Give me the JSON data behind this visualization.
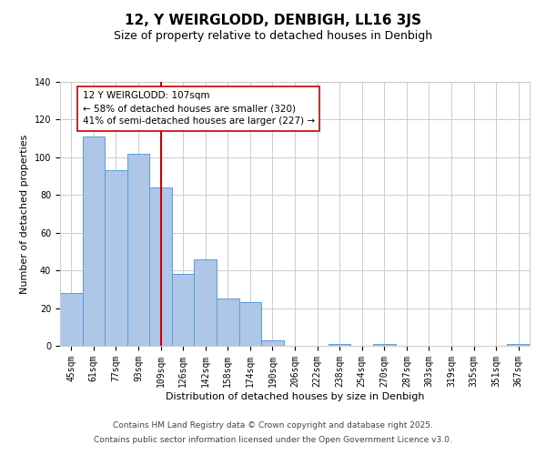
{
  "title": "12, Y WEIRGLODD, DENBIGH, LL16 3JS",
  "subtitle": "Size of property relative to detached houses in Denbigh",
  "xlabel": "Distribution of detached houses by size in Denbigh",
  "ylabel": "Number of detached properties",
  "bar_labels": [
    "45sqm",
    "61sqm",
    "77sqm",
    "93sqm",
    "109sqm",
    "126sqm",
    "142sqm",
    "158sqm",
    "174sqm",
    "190sqm",
    "206sqm",
    "222sqm",
    "238sqm",
    "254sqm",
    "270sqm",
    "287sqm",
    "303sqm",
    "319sqm",
    "335sqm",
    "351sqm",
    "367sqm"
  ],
  "bar_values": [
    28,
    111,
    93,
    102,
    84,
    38,
    46,
    25,
    23,
    3,
    0,
    0,
    1,
    0,
    1,
    0,
    0,
    0,
    0,
    0,
    1
  ],
  "bar_color": "#aec6e8",
  "bar_edge_color": "#5b9bd5",
  "vline_x": 4,
  "vline_color": "#cc0000",
  "ylim": [
    0,
    140
  ],
  "yticks": [
    0,
    20,
    40,
    60,
    80,
    100,
    120,
    140
  ],
  "annotation_title": "12 Y WEIRGLODD: 107sqm",
  "annotation_line1": "← 58% of detached houses are smaller (320)",
  "annotation_line2": "41% of semi-detached houses are larger (227) →",
  "annotation_box_color": "#ffffff",
  "annotation_box_edge": "#cc0000",
  "footer1": "Contains HM Land Registry data © Crown copyright and database right 2025.",
  "footer2": "Contains public sector information licensed under the Open Government Licence v3.0.",
  "background_color": "#ffffff",
  "grid_color": "#cccccc",
  "title_fontsize": 11,
  "subtitle_fontsize": 9,
  "axis_label_fontsize": 8,
  "tick_fontsize": 7,
  "annotation_fontsize": 7.5,
  "footer_fontsize": 6.5
}
